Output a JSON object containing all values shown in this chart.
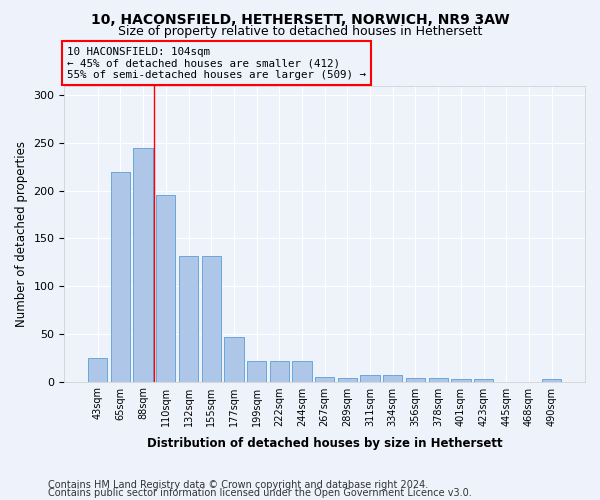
{
  "title1": "10, HACONSFIELD, HETHERSETT, NORWICH, NR9 3AW",
  "title2": "Size of property relative to detached houses in Hethersett",
  "xlabel": "Distribution of detached houses by size in Hethersett",
  "ylabel": "Number of detached properties",
  "bar_labels": [
    "43sqm",
    "65sqm",
    "88sqm",
    "110sqm",
    "132sqm",
    "155sqm",
    "177sqm",
    "199sqm",
    "222sqm",
    "244sqm",
    "267sqm",
    "289sqm",
    "311sqm",
    "334sqm",
    "356sqm",
    "378sqm",
    "401sqm",
    "423sqm",
    "445sqm",
    "468sqm",
    "490sqm"
  ],
  "bar_values": [
    25,
    220,
    245,
    196,
    132,
    132,
    47,
    22,
    22,
    22,
    5,
    4,
    7,
    7,
    4,
    4,
    3,
    3,
    0,
    0,
    3
  ],
  "bar_color": "#aec6e8",
  "bar_edge_color": "#5a9fd4",
  "annotation_line1": "10 HACONSFIELD: 104sqm",
  "annotation_line2": "← 45% of detached houses are smaller (412)",
  "annotation_line3": "55% of semi-detached houses are larger (509) →",
  "annotation_box_color": "red",
  "vline_position": 2.5,
  "vline_color": "red",
  "ylim": [
    0,
    310
  ],
  "yticks": [
    0,
    50,
    100,
    150,
    200,
    250,
    300
  ],
  "footer_line1": "Contains HM Land Registry data © Crown copyright and database right 2024.",
  "footer_line2": "Contains public sector information licensed under the Open Government Licence v3.0.",
  "background_color": "#eef2fb",
  "grid_color": "#ffffff",
  "title1_fontsize": 10,
  "title2_fontsize": 9,
  "annotation_fontsize": 7.8,
  "footer_fontsize": 7,
  "ylabel_fontsize": 8.5,
  "xlabel_fontsize": 8.5
}
